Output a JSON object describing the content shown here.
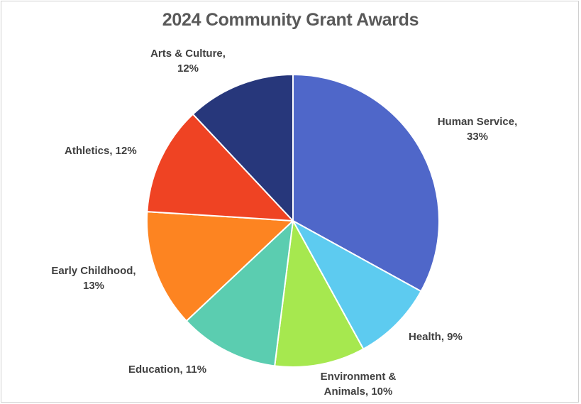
{
  "chart_data": {
    "type": "pie",
    "title": "2024 Community Grant Awards",
    "slices": [
      {
        "label": "Human Service, 33%",
        "label_lines": [
          "Human Service,",
          "33%"
        ],
        "value": 33,
        "color": "#4f67c9"
      },
      {
        "label": "Health, 9%",
        "label_lines": [
          "Health, 9%"
        ],
        "value": 9,
        "color": "#5dcbf0"
      },
      {
        "label": "Environment & Animals, 10%",
        "label_lines": [
          "Environment &",
          "Animals, 10%"
        ],
        "value": 10,
        "color": "#a6e84f"
      },
      {
        "label": "Education, 11%",
        "label_lines": [
          "Education, 11%"
        ],
        "value": 11,
        "color": "#5bcdb0"
      },
      {
        "label": "Early Childhood, 13%",
        "label_lines": [
          "Early Childhood,",
          "13%"
        ],
        "value": 13,
        "color": "#fd8421"
      },
      {
        "label": "Athletics, 12%",
        "label_lines": [
          "Athletics, 12%"
        ],
        "value": 12,
        "color": "#ef4323"
      },
      {
        "label": "Arts & Culture, 12%",
        "label_lines": [
          "Arts & Culture,",
          "12%"
        ],
        "value": 12,
        "color": "#27377b"
      }
    ],
    "legend": "none",
    "start_angle": "12 o'clock",
    "direction": "clockwise"
  }
}
